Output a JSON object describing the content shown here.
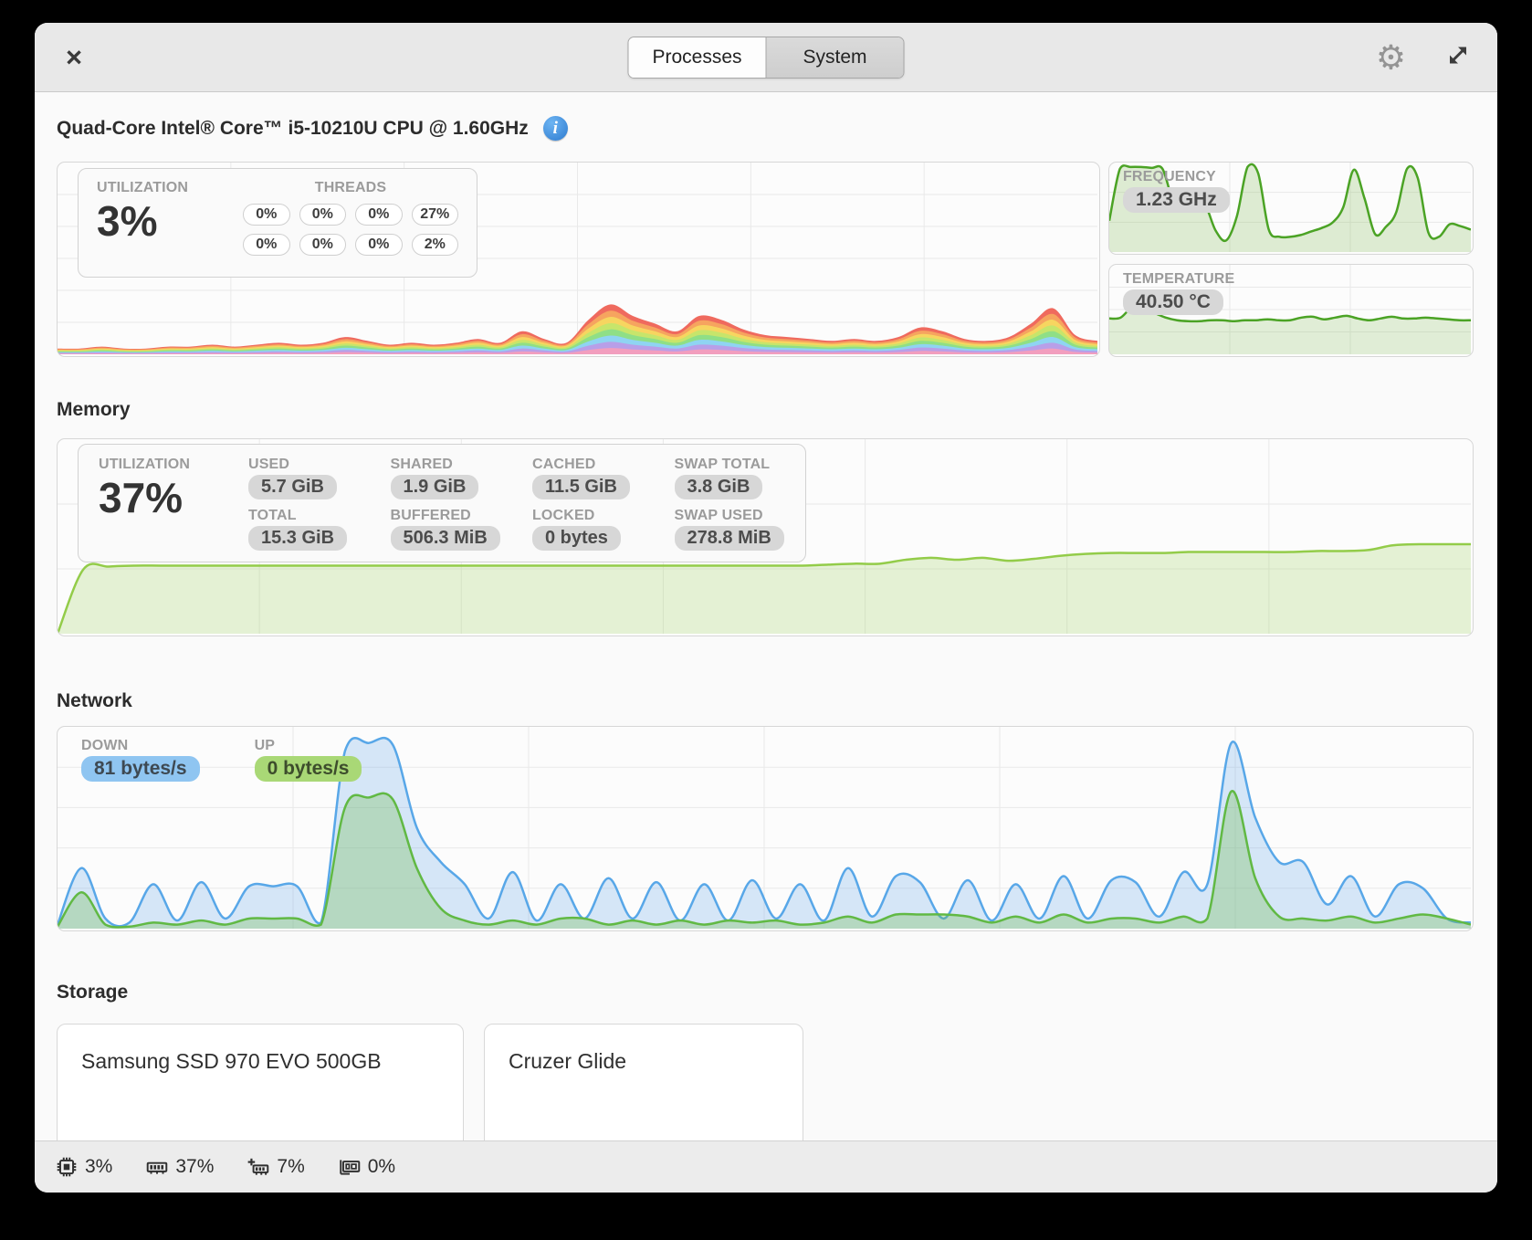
{
  "header": {
    "close_label": "×",
    "tabs": [
      {
        "label": "Processes",
        "selected": true
      },
      {
        "label": "System",
        "selected": false
      }
    ],
    "settings_icon_glyph": "⚙"
  },
  "cpu": {
    "title": "Quad-Core Intel® Core™ i5-10210U CPU @ 1.60GHz",
    "info_icon_glyph": "i",
    "utilization_label": "UTILIZATION",
    "utilization": "3%",
    "threads_label": "THREADS",
    "threads": [
      "0%",
      "0%",
      "0%",
      "27%",
      "0%",
      "0%",
      "0%",
      "2%"
    ],
    "frequency_label": "FREQUENCY",
    "frequency": "1.23 GHz",
    "temperature_label": "TEMPERATURE",
    "temperature": "40.50 °C"
  },
  "memory": {
    "heading": "Memory",
    "utilization_label": "UTILIZATION",
    "utilization": "37%",
    "stats": [
      {
        "label": "USED",
        "value": "5.7 GiB"
      },
      {
        "label": "SHARED",
        "value": "1.9 GiB"
      },
      {
        "label": "CACHED",
        "value": "11.5 GiB"
      },
      {
        "label": "SWAP TOTAL",
        "value": "3.8 GiB"
      },
      {
        "label": "TOTAL",
        "value": "15.3 GiB"
      },
      {
        "label": "BUFFERED",
        "value": "506.3 MiB"
      },
      {
        "label": "LOCKED",
        "value": "0 bytes"
      },
      {
        "label": "SWAP USED",
        "value": "278.8 MiB"
      }
    ]
  },
  "network": {
    "heading": "Network",
    "down_label": "DOWN",
    "down_value": "81 bytes/s",
    "up_label": "UP",
    "up_value": "0 bytes/s"
  },
  "storage": {
    "heading": "Storage",
    "devices": [
      "Samsung SSD 970 EVO 500GB",
      "Cruzer Glide"
    ]
  },
  "footer": {
    "items": [
      {
        "icon": "cpu-usage-icon",
        "value": "3%"
      },
      {
        "icon": "memory-usage-icon",
        "value": "37%"
      },
      {
        "icon": "swap-usage-icon",
        "value": "7%"
      },
      {
        "icon": "gpu-usage-icon",
        "value": "0%"
      }
    ]
  },
  "colors": {
    "accent_green_line": "#4ba325",
    "memory_green_line": "#93cc49",
    "network_down_blue": "#58a7e8",
    "network_up_green": "#61b944",
    "pill_gray_bg": "#d7d7d7",
    "pill_down_bg": "#8fc5f1",
    "pill_up_bg": "#a9d876",
    "info_icon_blue": "#2d7bd0"
  },
  "chart_data": [
    {
      "id": "cpu-total-utilization",
      "type": "area",
      "stacked": true,
      "unit": "fraction_of_chart_height",
      "ylim": [
        0,
        1
      ],
      "grid": true,
      "legend": "none",
      "stack_colors_top_to_bottom": [
        "#ef6a5e",
        "#f6a45f",
        "#f7d560",
        "#c7e56b",
        "#8fdf86",
        "#8fd4f2",
        "#b89fe8",
        "#f29ebe"
      ],
      "total": [
        0.03,
        0.03,
        0.04,
        0.03,
        0.03,
        0.04,
        0.04,
        0.05,
        0.04,
        0.05,
        0.06,
        0.05,
        0.06,
        0.09,
        0.07,
        0.05,
        0.06,
        0.05,
        0.06,
        0.08,
        0.06,
        0.12,
        0.08,
        0.06,
        0.18,
        0.26,
        0.2,
        0.16,
        0.12,
        0.2,
        0.18,
        0.13,
        0.1,
        0.09,
        0.08,
        0.07,
        0.08,
        0.07,
        0.09,
        0.14,
        0.12,
        0.08,
        0.07,
        0.09,
        0.16,
        0.24,
        0.1,
        0.07
      ]
    },
    {
      "id": "cpu-frequency",
      "type": "area",
      "title": "FREQUENCY",
      "current_value": "1.23 GHz",
      "unit": "fraction_of_chart_height",
      "ylim": [
        0,
        1
      ],
      "grid": true,
      "color": "#4ba325",
      "fill": "rgba(99,172,44,0.20)",
      "values": [
        0.35,
        0.93,
        0.95,
        0.95,
        0.94,
        0.93,
        0.58,
        0.55,
        0.55,
        0.53,
        0.24,
        0.13,
        0.4,
        0.95,
        0.88,
        0.25,
        0.17,
        0.17,
        0.19,
        0.23,
        0.27,
        0.33,
        0.5,
        0.92,
        0.6,
        0.2,
        0.28,
        0.45,
        0.93,
        0.83,
        0.22,
        0.17,
        0.31,
        0.29,
        0.25
      ]
    },
    {
      "id": "cpu-temperature",
      "type": "area",
      "title": "TEMPERATURE",
      "current_value": "40.50 °C",
      "unit": "fraction_of_chart_height",
      "ylim": [
        0,
        1
      ],
      "grid": true,
      "color": "#4ba325",
      "fill": "rgba(99,172,44,0.18)",
      "values": [
        0.4,
        0.41,
        0.52,
        0.49,
        0.46,
        0.41,
        0.38,
        0.37,
        0.37,
        0.38,
        0.38,
        0.37,
        0.38,
        0.38,
        0.39,
        0.38,
        0.38,
        0.41,
        0.42,
        0.39,
        0.41,
        0.43,
        0.4,
        0.38,
        0.4,
        0.42,
        0.4,
        0.4,
        0.41,
        0.4,
        0.39,
        0.38,
        0.38
      ]
    },
    {
      "id": "memory-utilization",
      "type": "area",
      "current_value": "37%",
      "unit": "fraction_of_chart_height",
      "ylim": [
        0,
        1
      ],
      "grid": true,
      "color": "#93cc49",
      "fill": "rgba(147,204,73,0.22)",
      "values": [
        0.0,
        0.33,
        0.345,
        0.35,
        0.35,
        0.35,
        0.35,
        0.35,
        0.35,
        0.35,
        0.35,
        0.35,
        0.35,
        0.35,
        0.35,
        0.35,
        0.35,
        0.35,
        0.35,
        0.35,
        0.35,
        0.35,
        0.35,
        0.35,
        0.35,
        0.35,
        0.35,
        0.35,
        0.35,
        0.35,
        0.355,
        0.36,
        0.36,
        0.38,
        0.39,
        0.38,
        0.39,
        0.375,
        0.385,
        0.4,
        0.41,
        0.415,
        0.415,
        0.415,
        0.42,
        0.42,
        0.42,
        0.42,
        0.42,
        0.425,
        0.425,
        0.43,
        0.455,
        0.46,
        0.46,
        0.46
      ]
    },
    {
      "id": "network-traffic",
      "type": "area",
      "multi": true,
      "unit": "fraction_of_chart_height",
      "ylim": [
        0,
        1
      ],
      "grid": true,
      "series": [
        {
          "name": "download",
          "current_value": "81 bytes/s",
          "color": "#58a7e8",
          "fill": "rgba(100,165,230,0.26)",
          "values": [
            0.02,
            0.3,
            0.05,
            0.03,
            0.22,
            0.04,
            0.23,
            0.05,
            0.21,
            0.21,
            0.21,
            0.03,
            0.88,
            0.92,
            0.91,
            0.5,
            0.33,
            0.22,
            0.05,
            0.28,
            0.04,
            0.22,
            0.05,
            0.25,
            0.05,
            0.23,
            0.04,
            0.22,
            0.04,
            0.24,
            0.05,
            0.22,
            0.04,
            0.3,
            0.06,
            0.26,
            0.23,
            0.05,
            0.24,
            0.04,
            0.22,
            0.05,
            0.26,
            0.05,
            0.24,
            0.23,
            0.06,
            0.28,
            0.22,
            0.92,
            0.55,
            0.33,
            0.33,
            0.12,
            0.26,
            0.06,
            0.22,
            0.2,
            0.05,
            0.03
          ]
        },
        {
          "name": "upload",
          "current_value": "0 bytes/s",
          "color": "#61b944",
          "fill": "rgba(110,185,70,0.30)",
          "values": [
            0.01,
            0.18,
            0.02,
            0.01,
            0.03,
            0.02,
            0.04,
            0.02,
            0.05,
            0.05,
            0.05,
            0.02,
            0.6,
            0.65,
            0.64,
            0.3,
            0.1,
            0.04,
            0.02,
            0.04,
            0.02,
            0.05,
            0.05,
            0.02,
            0.04,
            0.02,
            0.04,
            0.02,
            0.04,
            0.03,
            0.04,
            0.02,
            0.03,
            0.06,
            0.03,
            0.07,
            0.07,
            0.07,
            0.06,
            0.03,
            0.06,
            0.03,
            0.07,
            0.03,
            0.05,
            0.05,
            0.03,
            0.06,
            0.05,
            0.68,
            0.25,
            0.06,
            0.05,
            0.04,
            0.06,
            0.03,
            0.05,
            0.07,
            0.05,
            0.02
          ]
        }
      ]
    }
  ]
}
